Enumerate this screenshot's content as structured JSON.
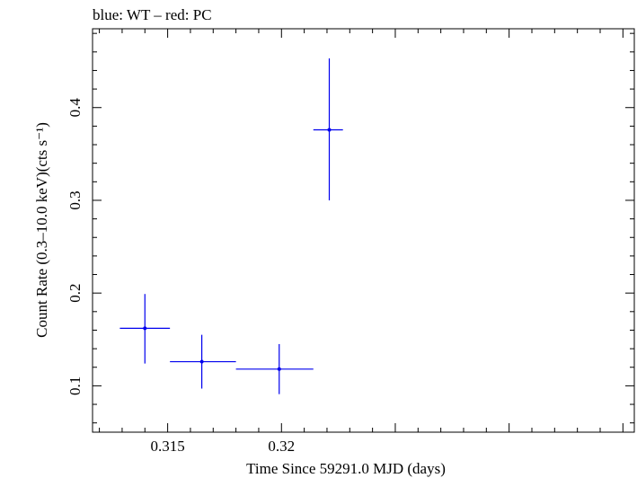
{
  "chart_data": {
    "type": "scatter",
    "title": "blue: WT – red: PC",
    "xlabel": "Time Since 59291.0 MJD (days)",
    "ylabel": "Count Rate (0.3–10.0 keV)(cts s⁻¹)",
    "xlim": [
      0.3117,
      0.3355
    ],
    "ylim": [
      0.05,
      0.485
    ],
    "xticks": [
      {
        "value": 0.315,
        "label": "0.315"
      },
      {
        "value": 0.32,
        "label": "0.32"
      }
    ],
    "yticks": [
      {
        "value": 0.1,
        "label": "0.1"
      },
      {
        "value": 0.2,
        "label": "0.2"
      },
      {
        "value": 0.3,
        "label": "0.3"
      },
      {
        "value": 0.4,
        "label": "0.4"
      }
    ],
    "grid": false,
    "series": [
      {
        "name": "WT",
        "color": "#0000ee",
        "points": [
          {
            "x": 0.314,
            "y": 0.162,
            "xerr_lo": 0.3129,
            "xerr_hi": 0.3151,
            "yerr_lo": 0.124,
            "yerr_hi": 0.199
          },
          {
            "x": 0.3165,
            "y": 0.126,
            "xerr_lo": 0.3151,
            "xerr_hi": 0.318,
            "yerr_lo": 0.097,
            "yerr_hi": 0.155
          },
          {
            "x": 0.3199,
            "y": 0.118,
            "xerr_lo": 0.318,
            "xerr_hi": 0.3214,
            "yerr_lo": 0.091,
            "yerr_hi": 0.145
          },
          {
            "x": 0.3221,
            "y": 0.376,
            "xerr_lo": 0.3214,
            "xerr_hi": 0.3227,
            "yerr_lo": 0.3,
            "yerr_hi": 0.453
          }
        ]
      }
    ]
  }
}
